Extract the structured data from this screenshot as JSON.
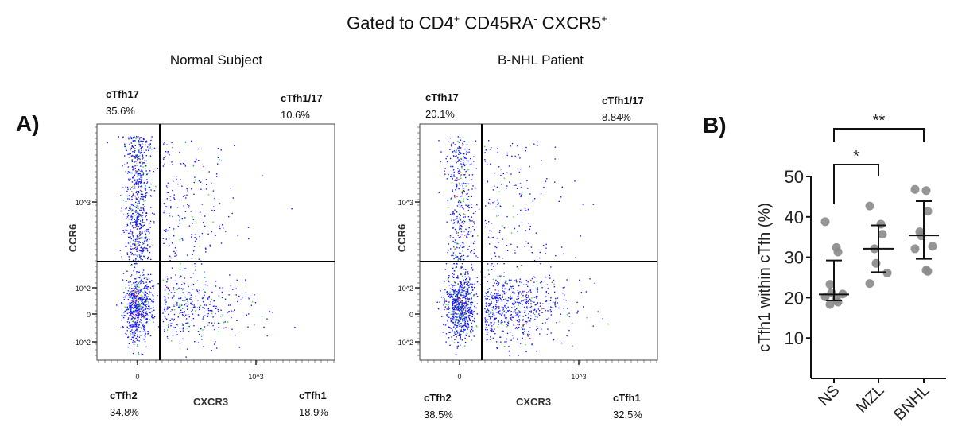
{
  "title": {
    "text": "Gated to CD4",
    "sup1": "+",
    "mid1": " CD45RA",
    "sup2": "-",
    "mid2": " CXCR5",
    "sup3": "+"
  },
  "panel_a_label": "A)",
  "panel_b_label": "B)",
  "chart_data": [
    {
      "type": "scatter",
      "title": "Normal Subject",
      "xlabel": "CXCR3",
      "ylabel": "CCR6",
      "x_ticks": [
        "0",
        "10^3"
      ],
      "y_ticks": [
        "10^3",
        "10^2",
        "0",
        "-10^2"
      ],
      "quadrants": [
        {
          "name": "cTfh17",
          "percent": "35.6%"
        },
        {
          "name": "cTfh1/17",
          "percent": "10.6%"
        },
        {
          "name": "cTfh2",
          "percent": "34.8%"
        },
        {
          "name": "cTfh1",
          "percent": "18.9%"
        }
      ]
    },
    {
      "type": "scatter",
      "title": "B-NHL Patient",
      "xlabel": "CXCR3",
      "ylabel": "CCR6",
      "x_ticks": [
        "0",
        "10^3"
      ],
      "y_ticks": [
        "10^3",
        "10^2",
        "0",
        "-10^2"
      ],
      "quadrants": [
        {
          "name": "cTfh17",
          "percent": "20.1%"
        },
        {
          "name": "cTfh1/17",
          "percent": "8.84%"
        },
        {
          "name": "cTfh2",
          "percent": "38.5%"
        },
        {
          "name": "cTfh1",
          "percent": "32.5%"
        }
      ]
    },
    {
      "type": "scatter",
      "ylabel": "cTfh1 within cTfh (%)",
      "ylim": [
        0,
        50
      ],
      "y_ticks": [
        10,
        20,
        30,
        40,
        50
      ],
      "categories": [
        "NS",
        "MZL",
        "BNHL"
      ],
      "point_color": "#8a8a8a",
      "groups": [
        {
          "name": "NS",
          "values": [
            38.8,
            32.4,
            31.3,
            23.3,
            21.2,
            20.9,
            20.2,
            19.6,
            18.9,
            18.3
          ],
          "center": 20.8,
          "err_low": 19.3,
          "err_high": 29.2
        },
        {
          "name": "MZL",
          "values": [
            42.7,
            38.2,
            35.7,
            32.1,
            28.5,
            26.1,
            23.5
          ],
          "center": 32.1,
          "err_low": 26.3,
          "err_high": 37.9
        },
        {
          "name": "BNHL",
          "values": [
            46.8,
            46.5,
            41.4,
            36.3,
            35.3,
            32.7,
            32.1,
            26.8,
            26.5
          ],
          "center": 35.4,
          "err_low": 29.6,
          "err_high": 43.9
        }
      ],
      "significance": [
        {
          "from": "NS",
          "to": "MZL",
          "label": "*"
        },
        {
          "from": "NS",
          "to": "BNHL",
          "label": "**"
        }
      ]
    }
  ]
}
